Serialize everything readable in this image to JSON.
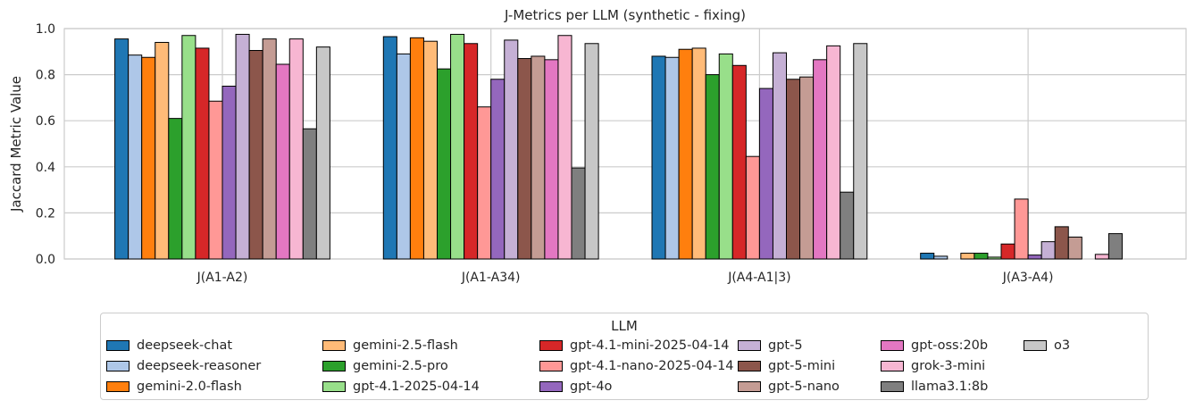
{
  "chart_data": {
    "type": "bar",
    "title": "J-Metrics per LLM (synthetic - fixing)",
    "xlabel": "",
    "ylabel": "Jaccard Metric Value",
    "ylim": [
      0,
      1.0
    ],
    "yticks": [
      "0.0",
      "0.2",
      "0.4",
      "0.6",
      "0.8",
      "1.0"
    ],
    "grid": true,
    "legend_placement": "bottom-center",
    "legend_title": "LLM",
    "categories": [
      "J(A1-A2)",
      "J(A1-A34)",
      "J(A4-A1|3)",
      "J(A3-A4)"
    ],
    "series": [
      {
        "name": "deepseek-chat",
        "color": "#1f77b4",
        "values": [
          0.955,
          0.965,
          0.88,
          0.025
        ]
      },
      {
        "name": "deepseek-reasoner",
        "color": "#aec7e8",
        "values": [
          0.885,
          0.89,
          0.875,
          0.012
        ]
      },
      {
        "name": "gemini-2.0-flash",
        "color": "#ff7f0e",
        "values": [
          0.875,
          0.96,
          0.91,
          0.0
        ]
      },
      {
        "name": "gemini-2.5-flash",
        "color": "#ffbb78",
        "values": [
          0.94,
          0.945,
          0.915,
          0.025
        ]
      },
      {
        "name": "gemini-2.5-pro",
        "color": "#2ca02c",
        "values": [
          0.61,
          0.825,
          0.8,
          0.025
        ]
      },
      {
        "name": "gpt-4.1-2025-04-14",
        "color": "#98df8a",
        "values": [
          0.97,
          0.975,
          0.89,
          0.008
        ]
      },
      {
        "name": "gpt-4.1-mini-2025-04-14",
        "color": "#d62728",
        "values": [
          0.915,
          0.935,
          0.84,
          0.065
        ]
      },
      {
        "name": "gpt-4.1-nano-2025-04-14",
        "color": "#ff9896",
        "values": [
          0.685,
          0.66,
          0.445,
          0.26
        ]
      },
      {
        "name": "gpt-4o",
        "color": "#9467bd",
        "values": [
          0.75,
          0.78,
          0.74,
          0.017
        ]
      },
      {
        "name": "gpt-5",
        "color": "#c5b0d5",
        "values": [
          0.975,
          0.95,
          0.895,
          0.075
        ]
      },
      {
        "name": "gpt-5-mini",
        "color": "#8c564b",
        "values": [
          0.905,
          0.87,
          0.78,
          0.14
        ]
      },
      {
        "name": "gpt-5-nano",
        "color": "#c49c94",
        "values": [
          0.955,
          0.88,
          0.79,
          0.095
        ]
      },
      {
        "name": "gpt-oss:20b",
        "color": "#e377c2",
        "values": [
          0.845,
          0.865,
          0.865,
          0.0
        ]
      },
      {
        "name": "grok-3-mini",
        "color": "#f7b6d2",
        "values": [
          0.955,
          0.97,
          0.925,
          0.02
        ]
      },
      {
        "name": "llama3.1:8b",
        "color": "#7f7f7f",
        "values": [
          0.565,
          0.395,
          0.29,
          0.11
        ]
      },
      {
        "name": "o3",
        "color": "#c7c7c7",
        "values": [
          0.92,
          0.935,
          0.935,
          0.0
        ]
      }
    ]
  }
}
